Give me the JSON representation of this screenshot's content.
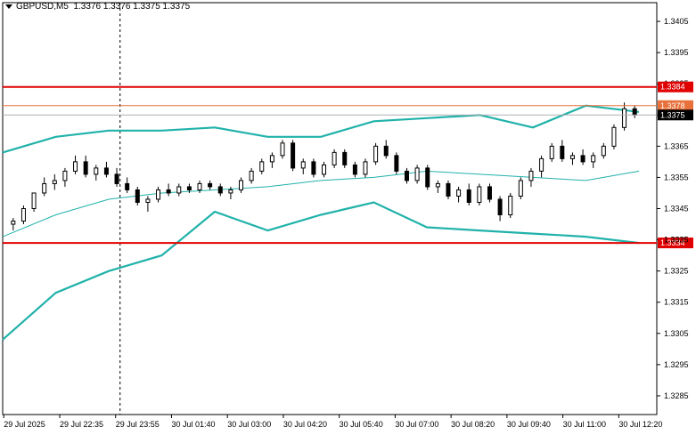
{
  "header": {
    "symbol": "GBPUSD,M5",
    "ohlc": "1.3376 1.3376 1.3375 1.3375"
  },
  "colors": {
    "background": "#ffffff",
    "grid": "#c8c8c8",
    "candle": "#000000",
    "bollinger": "#20b2aa",
    "horizontal_line": "#e00000",
    "bid_line": "#e8703a",
    "ask_line": "#b0b0b0",
    "crosshair": "#000000"
  },
  "icons": [
    "dropdown-arrow-icon"
  ],
  "chart_data": {
    "type": "candlestick",
    "symbol": "GBPUSD",
    "timeframe": "M5",
    "y_range": [
      1.3279,
      1.3411
    ],
    "y_ticks": [
      "1.3405",
      "1.3395",
      "1.3385",
      "1.3375",
      "1.3365",
      "1.3355",
      "1.3345",
      "1.3335",
      "1.3325",
      "1.3315",
      "1.3305",
      "1.3295",
      "1.3285"
    ],
    "x_ticks": [
      "29 Jul 2025",
      "29 Jul 22:35",
      "29 Jul 23:55",
      "30 Jul 01:40",
      "30 Jul 03:00",
      "30 Jul 04:20",
      "30 Jul 05:40",
      "30 Jul 07:00",
      "30 Jul 08:20",
      "30 Jul 09:40",
      "30 Jul 11:00",
      "30 Jul 12:20"
    ],
    "price_tags": [
      {
        "label": "1.3384",
        "kind": "horizontal_line",
        "value": 1.3384
      },
      {
        "label": "1.3378",
        "kind": "bid",
        "value": 1.3378
      },
      {
        "label": "1.3375",
        "kind": "current",
        "value": 1.3375
      },
      {
        "label": "1.3334",
        "kind": "horizontal_line",
        "value": 1.3334
      },
      {
        "label": "1.3335",
        "kind": "hidden_tick",
        "value": 1.3335
      }
    ],
    "horizontal_levels": [
      1.3384,
      1.3334
    ],
    "bollinger": {
      "upper": [
        1.3363,
        1.3368,
        1.337,
        1.337,
        1.3371,
        1.3368,
        1.3368,
        1.3373,
        1.3374,
        1.3375,
        1.3371,
        1.3378,
        1.3376
      ],
      "middle": [
        1.3336,
        1.3343,
        1.3348,
        1.335,
        1.3351,
        1.3352,
        1.3354,
        1.3355,
        1.3357,
        1.3356,
        1.3355,
        1.3354,
        1.3357
      ],
      "lower": [
        1.3303,
        1.3318,
        1.3325,
        1.333,
        1.3344,
        1.3338,
        1.3343,
        1.3347,
        1.3339,
        1.3338,
        1.3337,
        1.3336,
        1.3334
      ]
    },
    "candles": [
      [
        1.334,
        1.3342,
        1.3338,
        1.3341
      ],
      [
        1.3341,
        1.3346,
        1.334,
        1.3345
      ],
      [
        1.3345,
        1.335,
        1.3344,
        1.335
      ],
      [
        1.335,
        1.3355,
        1.3349,
        1.3353
      ],
      [
        1.3353,
        1.3356,
        1.3351,
        1.3354
      ],
      [
        1.3354,
        1.3358,
        1.3352,
        1.3357
      ],
      [
        1.3357,
        1.3362,
        1.3356,
        1.336
      ],
      [
        1.336,
        1.3362,
        1.3355,
        1.3356
      ],
      [
        1.3356,
        1.3359,
        1.3354,
        1.3358
      ],
      [
        1.3358,
        1.336,
        1.3355,
        1.3356
      ],
      [
        1.3356,
        1.3358,
        1.3352,
        1.3353
      ],
      [
        1.3353,
        1.3355,
        1.335,
        1.3351
      ],
      [
        1.3351,
        1.3352,
        1.3346,
        1.3347
      ],
      [
        1.3347,
        1.3349,
        1.3344,
        1.3348
      ],
      [
        1.3348,
        1.3352,
        1.3347,
        1.3351
      ],
      [
        1.3351,
        1.3353,
        1.3349,
        1.335
      ],
      [
        1.335,
        1.3353,
        1.3349,
        1.3352
      ],
      [
        1.3352,
        1.3353,
        1.335,
        1.3351
      ],
      [
        1.3351,
        1.3354,
        1.335,
        1.3353
      ],
      [
        1.3353,
        1.3354,
        1.3351,
        1.3352
      ],
      [
        1.3352,
        1.3353,
        1.3349,
        1.335
      ],
      [
        1.335,
        1.3352,
        1.3348,
        1.3351
      ],
      [
        1.3351,
        1.3355,
        1.335,
        1.3354
      ],
      [
        1.3354,
        1.3358,
        1.3353,
        1.3357
      ],
      [
        1.3357,
        1.3361,
        1.3356,
        1.336
      ],
      [
        1.336,
        1.3363,
        1.3358,
        1.3362
      ],
      [
        1.3362,
        1.3367,
        1.3361,
        1.3366
      ],
      [
        1.3366,
        1.3367,
        1.3357,
        1.3358
      ],
      [
        1.3358,
        1.3361,
        1.3356,
        1.336
      ],
      [
        1.336,
        1.3361,
        1.3355,
        1.3356
      ],
      [
        1.3356,
        1.336,
        1.3355,
        1.3359
      ],
      [
        1.3359,
        1.3364,
        1.3358,
        1.3363
      ],
      [
        1.3363,
        1.3364,
        1.3358,
        1.3359
      ],
      [
        1.3359,
        1.336,
        1.3355,
        1.3356
      ],
      [
        1.3356,
        1.3361,
        1.3355,
        1.336
      ],
      [
        1.336,
        1.3366,
        1.3359,
        1.3365
      ],
      [
        1.3365,
        1.3367,
        1.3361,
        1.3362
      ],
      [
        1.3362,
        1.3363,
        1.3356,
        1.3357
      ],
      [
        1.3357,
        1.3358,
        1.3353,
        1.3354
      ],
      [
        1.3354,
        1.3359,
        1.3353,
        1.3358
      ],
      [
        1.3358,
        1.3359,
        1.3351,
        1.3352
      ],
      [
        1.3352,
        1.3354,
        1.335,
        1.3353
      ],
      [
        1.3353,
        1.3354,
        1.3348,
        1.3349
      ],
      [
        1.3349,
        1.3352,
        1.3347,
        1.3351
      ],
      [
        1.3351,
        1.3353,
        1.3346,
        1.3347
      ],
      [
        1.3347,
        1.3353,
        1.3346,
        1.3352
      ],
      [
        1.3352,
        1.3353,
        1.3347,
        1.3348
      ],
      [
        1.3348,
        1.3349,
        1.3341,
        1.3343
      ],
      [
        1.3343,
        1.335,
        1.3342,
        1.3349
      ],
      [
        1.3349,
        1.3355,
        1.3348,
        1.3354
      ],
      [
        1.3354,
        1.3358,
        1.3352,
        1.3357
      ],
      [
        1.3357,
        1.3362,
        1.3355,
        1.3361
      ],
      [
        1.3361,
        1.3366,
        1.336,
        1.3365
      ],
      [
        1.3365,
        1.3367,
        1.336,
        1.3361
      ],
      [
        1.3361,
        1.3363,
        1.3359,
        1.3362
      ],
      [
        1.3362,
        1.3364,
        1.3359,
        1.336
      ],
      [
        1.336,
        1.3363,
        1.3358,
        1.3362
      ],
      [
        1.3362,
        1.3366,
        1.3361,
        1.3365
      ],
      [
        1.3365,
        1.3372,
        1.3364,
        1.3371
      ],
      [
        1.3371,
        1.3379,
        1.337,
        1.3377
      ],
      [
        1.3377,
        1.3378,
        1.3374,
        1.3375
      ]
    ]
  }
}
